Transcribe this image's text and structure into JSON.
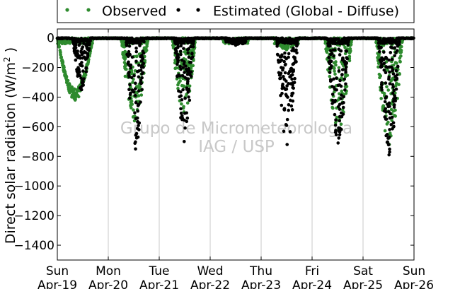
{
  "chart_data": {
    "type": "scatter",
    "title": "",
    "xlabel": "",
    "ylabel": "Direct solar radiation (W/m",
    "ylabel_sup": "2",
    "ylabel_close": " )",
    "ylim": [
      -1500,
      60
    ],
    "yticks": [
      0,
      -200,
      -400,
      -600,
      -800,
      -1000,
      -1200,
      -1400
    ],
    "xlim": [
      0,
      7
    ],
    "xticks": [
      {
        "x": 0,
        "day": "Sun",
        "date": "Apr-19"
      },
      {
        "x": 1,
        "day": "Mon",
        "date": "Apr-20"
      },
      {
        "x": 2,
        "day": "Tue",
        "date": "Apr-21"
      },
      {
        "x": 3,
        "day": "Wed",
        "date": "Apr-22"
      },
      {
        "x": 4,
        "day": "Thu",
        "date": "Apr-23"
      },
      {
        "x": 5,
        "day": "Fri",
        "date": "Apr-24"
      },
      {
        "x": 6,
        "day": "Sat",
        "date": "Apr-25"
      },
      {
        "x": 7,
        "day": "Sun",
        "date": "Apr-26"
      }
    ],
    "grid": "vertical",
    "legend": {
      "placement": "top"
    },
    "watermark": [
      "Grupo de Micrometeorologia",
      "IAG / USP"
    ],
    "series": [
      {
        "name": "Observed",
        "color": "#2e8b2e",
        "days": [
          {
            "x0": 0.0,
            "x1": 0.7,
            "min": -420,
            "amp": 0.18
          },
          {
            "x0": 1.25,
            "x1": 1.78,
            "min": -560,
            "amp": 0.85
          },
          {
            "x0": 2.25,
            "x1": 2.72,
            "min": -500,
            "amp": 0.85
          },
          {
            "x0": 3.25,
            "x1": 3.75,
            "min": -40,
            "amp": 0.9
          },
          {
            "x0": 4.25,
            "x1": 4.75,
            "min": -80,
            "amp": 0.9
          },
          {
            "x0": 5.25,
            "x1": 5.78,
            "min": -620,
            "amp": 0.95
          },
          {
            "x0": 6.25,
            "x1": 6.78,
            "min": -720,
            "amp": 0.95
          }
        ]
      },
      {
        "name": "Estimated (Global - Diffuse)",
        "color": "#000000",
        "days": [
          {
            "x0": 0.3,
            "x1": 0.65,
            "min": -350,
            "amp": 0.85
          },
          {
            "x0": 1.35,
            "x1": 1.72,
            "min": -750,
            "amp": 0.95
          },
          {
            "x0": 2.3,
            "x1": 2.68,
            "min": -700,
            "amp": 0.95
          },
          {
            "x0": 3.3,
            "x1": 3.7,
            "min": -50,
            "amp": 0.9
          },
          {
            "x0": 4.3,
            "x1": 4.72,
            "min": -720,
            "amp": 0.9
          },
          {
            "x0": 5.3,
            "x1": 5.72,
            "min": -710,
            "amp": 0.95
          },
          {
            "x0": 6.3,
            "x1": 6.72,
            "min": -790,
            "amp": 0.95
          }
        ]
      }
    ]
  }
}
